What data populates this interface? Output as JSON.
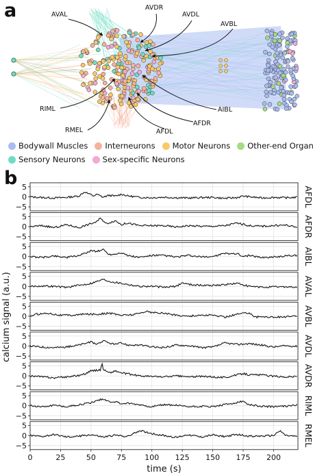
{
  "panel_a": {
    "letter": "a",
    "neuron_labels": [
      "AVAL",
      "AVDR",
      "AVDL",
      "AVBL",
      "RIML",
      "AIBL",
      "AFDR",
      "RMEL",
      "AFDL"
    ],
    "legend": [
      {
        "label": "Bodywall Muscles",
        "color": "#a9bdf2"
      },
      {
        "label": "Interneurons",
        "color": "#f6b39c"
      },
      {
        "label": "Motor Neurons",
        "color": "#f8c96a"
      },
      {
        "label": "Other-end Organs",
        "color": "#a6dc84"
      },
      {
        "label": "Sensory Neurons",
        "color": "#6fdcc4"
      },
      {
        "label": "Sex-specific Neurons",
        "color": "#f3a9d3"
      }
    ]
  },
  "panel_b": {
    "letter": "b",
    "chart_data": {
      "type": "line",
      "xlabel": "time (s)",
      "ylabel": "calcium signal (a.u.)",
      "xlim": [
        0,
        220
      ],
      "xticks": [
        0,
        25,
        50,
        75,
        100,
        125,
        150,
        175,
        200
      ],
      "ylim": [
        -7,
        7
      ],
      "yticks": [
        5,
        0,
        -5
      ],
      "grid": true,
      "series": [
        {
          "name": "AFDL",
          "x": [
            0,
            10,
            20,
            30,
            40,
            45,
            48,
            52,
            55,
            60,
            65,
            70,
            75,
            80,
            90,
            100,
            110,
            120,
            130,
            140,
            150,
            160,
            170,
            175,
            180,
            190,
            200,
            210,
            220
          ],
          "values": [
            0,
            -0.4,
            -0.6,
            -0.3,
            0.4,
            2.5,
            1.5,
            0.5,
            1.2,
            -0.2,
            0.8,
            0.3,
            1.3,
            0.5,
            -0.3,
            -0.5,
            -0.2,
            -0.5,
            -0.6,
            -0.4,
            -0.3,
            -0.8,
            -0.4,
            0.4,
            0.0,
            -0.6,
            -0.3,
            -0.5,
            -0.2
          ]
        },
        {
          "name": "AFDR",
          "x": [
            0,
            10,
            20,
            30,
            40,
            50,
            55,
            58,
            62,
            65,
            70,
            75,
            80,
            90,
            100,
            110,
            120,
            130,
            140,
            150,
            160,
            170,
            180,
            190,
            200,
            210,
            220
          ],
          "values": [
            0,
            0.5,
            -0.5,
            1.0,
            -0.5,
            1.5,
            2.5,
            4.5,
            1.5,
            2.0,
            3.0,
            1.0,
            1.8,
            0.5,
            0.5,
            0.5,
            -0.2,
            0.5,
            0.2,
            0.2,
            0.5,
            1.8,
            0.5,
            0.2,
            0.5,
            0.8,
            -0.5
          ]
        },
        {
          "name": "AIBL",
          "x": [
            0,
            10,
            20,
            30,
            40,
            45,
            50,
            55,
            60,
            65,
            70,
            75,
            80,
            90,
            100,
            110,
            120,
            130,
            140,
            150,
            160,
            170,
            175,
            180,
            190,
            200,
            210,
            220
          ],
          "values": [
            0,
            -0.5,
            0.3,
            -0.5,
            0.5,
            1.5,
            3.0,
            2.5,
            3.5,
            1.0,
            1.2,
            2.0,
            0.5,
            -0.5,
            0.5,
            0.5,
            -0.3,
            0.5,
            -0.3,
            0.0,
            1.5,
            1.5,
            0.0,
            0.5,
            -0.5,
            -0.3,
            0.3,
            0.5
          ]
        },
        {
          "name": "AVAL",
          "x": [
            0,
            10,
            20,
            30,
            40,
            50,
            55,
            60,
            65,
            75,
            85,
            90,
            100,
            110,
            120,
            125,
            130,
            140,
            150,
            160,
            170,
            180,
            190,
            200,
            210,
            220
          ],
          "values": [
            0,
            0.2,
            0.0,
            -0.5,
            0.5,
            1.5,
            2.5,
            3.5,
            2.5,
            1.5,
            0.5,
            0.0,
            0.0,
            -0.5,
            0.0,
            1.8,
            1.0,
            0.5,
            0.5,
            0.8,
            1.5,
            0.0,
            -0.5,
            -0.3,
            -0.2,
            -0.5
          ]
        },
        {
          "name": "AVBL",
          "x": [
            0,
            5,
            15,
            25,
            35,
            45,
            55,
            65,
            75,
            85,
            90,
            95,
            100,
            110,
            120,
            130,
            140,
            150,
            160,
            170,
            180,
            185,
            190,
            200,
            210,
            220
          ],
          "values": [
            0,
            1.0,
            1.5,
            0.5,
            0.5,
            1.0,
            1.0,
            1.5,
            0.5,
            0.8,
            1.5,
            2.5,
            1.8,
            1.5,
            0.5,
            0.0,
            0.5,
            0.5,
            -0.5,
            1.0,
            1.8,
            -0.5,
            -0.2,
            -0.5,
            -0.3,
            0.0
          ]
        },
        {
          "name": "AVDL",
          "x": [
            0,
            10,
            20,
            30,
            40,
            50,
            55,
            60,
            65,
            70,
            75,
            80,
            90,
            100,
            110,
            120,
            130,
            140,
            150,
            160,
            170,
            180,
            190,
            200,
            210,
            220
          ],
          "values": [
            0,
            -0.5,
            -0.8,
            -0.5,
            0.5,
            2.0,
            1.0,
            2.5,
            1.5,
            0.8,
            1.5,
            0.5,
            0.5,
            -0.5,
            -0.8,
            0.5,
            0.2,
            -0.8,
            -0.6,
            1.5,
            0.8,
            1.2,
            0.5,
            -0.5,
            0.2,
            -0.2
          ]
        },
        {
          "name": "AVDR",
          "x": [
            0,
            10,
            20,
            30,
            40,
            45,
            50,
            55,
            58,
            59,
            60,
            62,
            65,
            70,
            75,
            80,
            90,
            100,
            110,
            120,
            130,
            140,
            150,
            160,
            170,
            175,
            180,
            190,
            200,
            210,
            220
          ],
          "values": [
            0,
            -0.5,
            -1.0,
            -0.5,
            0.2,
            1.0,
            2.5,
            2.8,
            3.0,
            6.8,
            3.5,
            2.5,
            1.5,
            2.5,
            1.5,
            1.0,
            0.0,
            -0.3,
            -0.5,
            0.0,
            -0.5,
            -0.3,
            -0.5,
            -0.8,
            0.5,
            1.2,
            0.5,
            0.5,
            -0.2,
            -0.5,
            -0.3
          ]
        },
        {
          "name": "RIML",
          "x": [
            0,
            10,
            20,
            30,
            40,
            50,
            55,
            60,
            65,
            70,
            75,
            80,
            90,
            100,
            110,
            120,
            130,
            140,
            150,
            160,
            170,
            175,
            180,
            190,
            200,
            210,
            220
          ],
          "values": [
            0,
            -0.5,
            0.3,
            -0.5,
            0.5,
            1.5,
            2.5,
            3.5,
            2.0,
            2.0,
            1.0,
            1.2,
            0.5,
            -0.5,
            0.5,
            0.2,
            -0.5,
            -0.3,
            -0.5,
            0.5,
            1.5,
            2.2,
            0.5,
            -0.3,
            -0.5,
            -0.2,
            0.5
          ]
        },
        {
          "name": "RMEL",
          "x": [
            0,
            10,
            20,
            30,
            40,
            50,
            60,
            70,
            80,
            90,
            100,
            110,
            120,
            130,
            140,
            150,
            160,
            170,
            180,
            190,
            200,
            205,
            210,
            220
          ],
          "values": [
            0,
            -0.5,
            0.5,
            -0.8,
            -0.3,
            0.5,
            -0.8,
            0.2,
            -0.5,
            2.5,
            1.0,
            0.0,
            -1.0,
            0.5,
            -0.8,
            0.3,
            -0.5,
            0.5,
            -0.3,
            -0.3,
            0.0,
            2.5,
            0.0,
            -0.5
          ]
        }
      ]
    }
  }
}
